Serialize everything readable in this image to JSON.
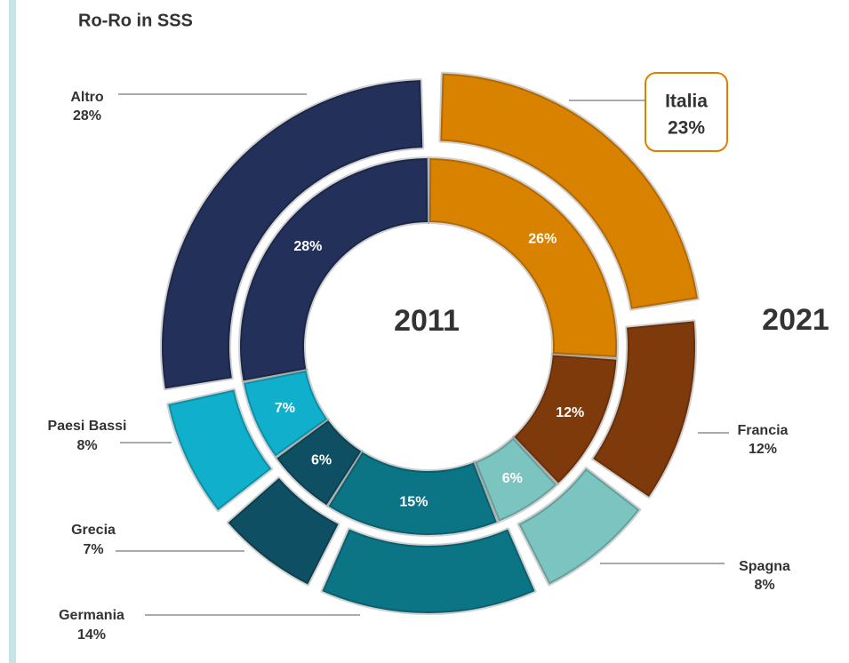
{
  "chart_data": {
    "type": "nested-donut",
    "title": "Ro-Ro in SSS",
    "categories": [
      "Italia",
      "Francia",
      "Spagna",
      "Germania",
      "Grecia",
      "Paesi Bassi",
      "Altro"
    ],
    "colors": [
      "#d98200",
      "#7f3a0c",
      "#7cc4c0",
      "#0b7585",
      "#0f4f63",
      "#10b0cc",
      "#22305a"
    ],
    "series": [
      {
        "name": "2011",
        "values": [
          26,
          12,
          6,
          15,
          6,
          7,
          28
        ],
        "value_labels": [
          "26%",
          "12%",
          "6%",
          "15%",
          "6%",
          "7%",
          "28%"
        ]
      },
      {
        "name": "2021",
        "values": [
          23,
          12,
          8,
          14,
          7,
          8,
          28
        ],
        "value_labels": [
          "23%",
          "12%",
          "8%",
          "14%",
          "7%",
          "8%",
          "28%"
        ]
      }
    ]
  }
}
